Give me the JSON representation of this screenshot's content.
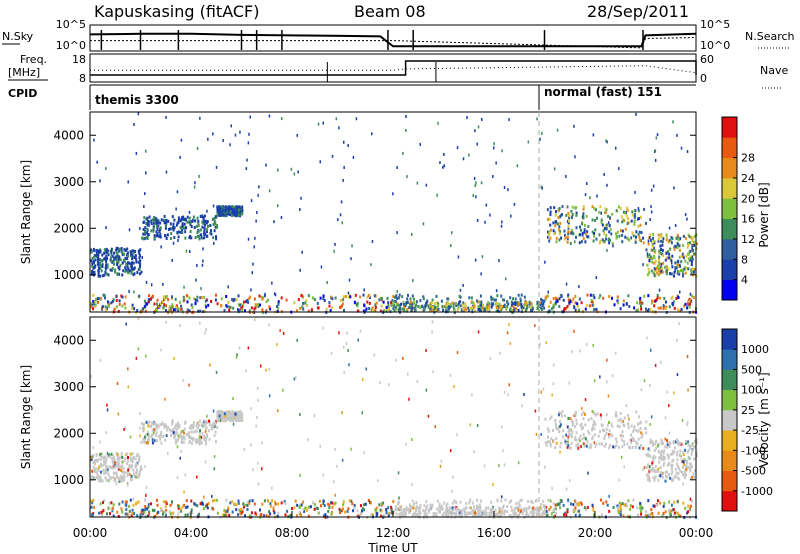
{
  "header": {
    "station": "Kapuskasing (fitACF)",
    "beam": "Beam 08",
    "date": "28/Sep/2011"
  },
  "left_labels": {
    "nsky": "N.Sky",
    "freq_line1": "Freq.",
    "freq_line2": "[MHz]",
    "cpid": "CPID"
  },
  "right_labels": {
    "nsearch": "N.Search",
    "nave": "Nave"
  },
  "cpid_segments": [
    {
      "label": "themis 3300",
      "start": "00:00"
    },
    {
      "label": "normal (fast) 151",
      "start": "18:05"
    }
  ],
  "chart_data": [
    {
      "type": "line",
      "name": "noise",
      "yticks_left": [
        "10^5",
        "10^0"
      ],
      "yticks_right": [
        "10^5",
        "10^0"
      ],
      "series": [
        {
          "name": "N.Sky",
          "x": [
            "00:00",
            "02:00",
            "04:00",
            "06:00",
            "08:00",
            "10:00",
            "11:30",
            "12:00",
            "14:00",
            "16:00",
            "18:00",
            "20:00",
            "21:50",
            "22:00",
            "24:00"
          ],
          "values": [
            3.2,
            3.3,
            3.3,
            3.1,
            3.0,
            2.9,
            2.8,
            0.9,
            0.9,
            0.9,
            0.9,
            0.9,
            0.9,
            3.0,
            3.3
          ]
        },
        {
          "name": "N.Search",
          "x": [
            "00:00",
            "12:00",
            "21:50",
            "22:00",
            "24:00"
          ],
          "values": [
            2.0,
            2.0,
            0.6,
            2.4,
            2.6
          ]
        }
      ]
    },
    {
      "type": "line",
      "name": "frequency",
      "yticks_left": [
        "18",
        "8"
      ],
      "yticks_right": [
        "60",
        "0"
      ],
      "series": [
        {
          "name": "Freq",
          "x": [
            "00:00",
            "12:00",
            "12:30",
            "22:00",
            "24:00"
          ],
          "values": [
            10.5,
            10.5,
            15.5,
            15.5,
            10.5
          ]
        },
        {
          "name": "Nave",
          "x": [
            "00:00",
            "12:00",
            "12:30",
            "22:00",
            "24:00"
          ],
          "values": [
            25,
            25,
            28,
            35,
            20
          ]
        }
      ]
    },
    {
      "type": "heatmap",
      "name": "power",
      "ylabel": "Slant Range [km]",
      "yticks": [
        "1000",
        "2000",
        "3000",
        "4000"
      ],
      "ylim": [
        200,
        4500
      ],
      "colorbar_label": "Power [dB]",
      "colorbar_ticks": [
        "4",
        "8",
        "12",
        "16",
        "20",
        "24",
        "28"
      ],
      "colorbar_colors": [
        "#0000ee",
        "#1a3fa8",
        "#2f5f9e",
        "#3d8c5a",
        "#7fbf3f",
        "#d8c83a",
        "#e88a1a",
        "#e85a12",
        "#e01010"
      ],
      "echo_regions": [
        {
          "t0": "00:00",
          "t1": "02:00",
          "r0": 1000,
          "r1": 1600,
          "level": "low"
        },
        {
          "t0": "02:00",
          "t1": "05:00",
          "r0": 1800,
          "r1": 2300,
          "level": "low"
        },
        {
          "t0": "05:00",
          "t1": "06:00",
          "r0": 2300,
          "r1": 2500,
          "level": "low"
        },
        {
          "t0": "12:00",
          "t1": "18:00",
          "r0": 250,
          "r1": 450,
          "level": "mixed"
        },
        {
          "t0": "18:00",
          "t1": "22:00",
          "r0": 1700,
          "r1": 2500,
          "level": "mixed"
        },
        {
          "t0": "22:00",
          "t1": "24:00",
          "r0": 1000,
          "r1": 1900,
          "level": "mixed"
        }
      ]
    },
    {
      "type": "heatmap",
      "name": "velocity",
      "ylabel": "Slant Range [km]",
      "xlabel": "Time UT",
      "yticks": [
        "1000",
        "2000",
        "3000",
        "4000"
      ],
      "ylim": [
        200,
        4500
      ],
      "xticks": [
        "00:00",
        "04:00",
        "08:00",
        "12:00",
        "16:00",
        "20:00",
        "00:00"
      ],
      "colorbar_label": "Velocity",
      "colorbar_unit": "[m s⁻¹]",
      "colorbar_ticks": [
        "1000",
        "500",
        "100",
        "25",
        "-25",
        "-100",
        "-500",
        "-1000"
      ],
      "colorbar_colors": [
        "#1a3fa8",
        "#2f6fb0",
        "#3d8c5a",
        "#7fbf3f",
        "#c8c8c8",
        "#e8b020",
        "#e88a1a",
        "#e85a12",
        "#e01010"
      ]
    }
  ]
}
